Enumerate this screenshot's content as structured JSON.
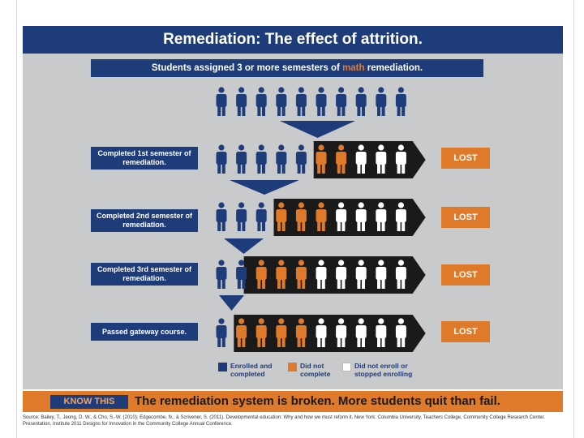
{
  "title": "Remediation: The effect of attrition.",
  "subtitle": {
    "prefix": "Students assigned 3 or more semesters of ",
    "highlight": "math",
    "suffix": " remediation."
  },
  "rows": [
    {
      "label": "Completed 1st semester of remediation.",
      "lost": "LOST",
      "enrolled_completed": 5,
      "did_not_complete": 2,
      "did_not_enroll": 3
    },
    {
      "label": "Completed 2nd semester of remediation.",
      "lost": "LOST",
      "enrolled_completed": 3,
      "did_not_complete": 3,
      "did_not_enroll": 4
    },
    {
      "label": "Completed 3rd semester of remediation.",
      "lost": "LOST",
      "enrolled_completed": 1.5,
      "did_not_complete": 3.5,
      "did_not_enroll": 5
    },
    {
      "label": "Passed gateway course.",
      "lost": "LOST",
      "enrolled_completed": 1,
      "did_not_complete": 3.5,
      "did_not_enroll": 5.5
    }
  ],
  "initial_students": 10,
  "legend": [
    {
      "label": "Enrolled and completed",
      "color": "#1f3c7a"
    },
    {
      "label": "Did not complete",
      "color": "#e07a2b"
    },
    {
      "label": "Did not enroll or stopped enrolling",
      "color": "#ffffff"
    }
  ],
  "bottom": {
    "know_this": "KNOW THIS",
    "tagline": "The remediation system is broken. More students quit than fail."
  },
  "citation": "Source: Bailey, T., Jeong, D. W., & Cho, S.-W. (2010); Edgecombe, N., & Scrivener, S. (2011). Developmental education: Why and how we must reform it. New York: Columbia University, Teachers College, Community College Research Center. Presentation, Institute 2011 Designs for Innovation in the Community College Annual Conference.",
  "colors": {
    "navy": "#1f3c7a",
    "orange": "#e07a2b",
    "gray_bg": "#c9cacc",
    "dark_band": "#1a1a1a"
  }
}
